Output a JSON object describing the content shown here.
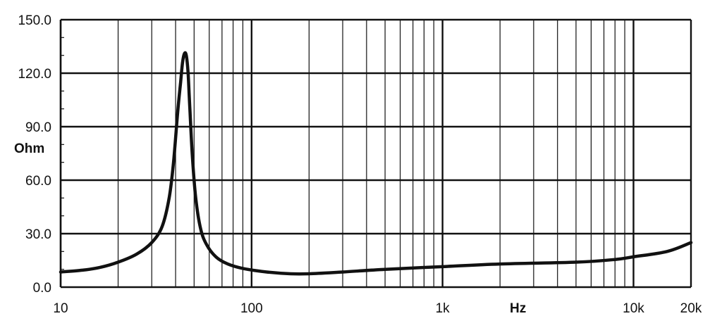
{
  "chart_data": {
    "type": "line",
    "title": "",
    "xlabel": "Hz",
    "ylabel": "Ohm",
    "xscale": "log",
    "xlim": [
      10,
      20000
    ],
    "ylim": [
      0,
      150
    ],
    "grid": true,
    "x_tick_labels": [
      {
        "value": 10,
        "label": "10"
      },
      {
        "value": 100,
        "label": "100"
      },
      {
        "value": 1000,
        "label": "1k"
      },
      {
        "value": 10000,
        "label": "10k"
      },
      {
        "value": 20000,
        "label": "20k"
      }
    ],
    "y_tick_labels": [
      {
        "value": 0,
        "label": "0.0"
      },
      {
        "value": 30,
        "label": "30.0"
      },
      {
        "value": 60,
        "label": "60.0"
      },
      {
        "value": 90,
        "label": "90.0"
      },
      {
        "value": 120,
        "label": "120.0"
      },
      {
        "value": 150,
        "label": "150.0"
      }
    ],
    "series": [
      {
        "x": [
          10,
          13,
          16,
          20,
          25,
          30,
          34,
          37,
          39,
          41,
          42.5,
          43.5,
          44.5,
          45.5,
          46.5,
          47.5,
          49,
          51,
          54,
          58,
          65,
          75,
          90,
          120,
          160,
          200,
          300,
          500,
          1000,
          2000,
          5000,
          8000,
          10000,
          15000,
          20000
        ],
        "y": [
          8.5,
          9.5,
          11,
          14,
          18.5,
          25,
          34,
          50,
          70,
          98,
          115,
          126,
          131,
          130,
          120,
          100,
          73,
          50,
          33,
          24,
          17,
          13,
          10.5,
          8.5,
          7.5,
          7.5,
          8.5,
          10,
          11.5,
          13,
          14,
          15.5,
          17,
          20,
          25
        ]
      }
    ]
  }
}
